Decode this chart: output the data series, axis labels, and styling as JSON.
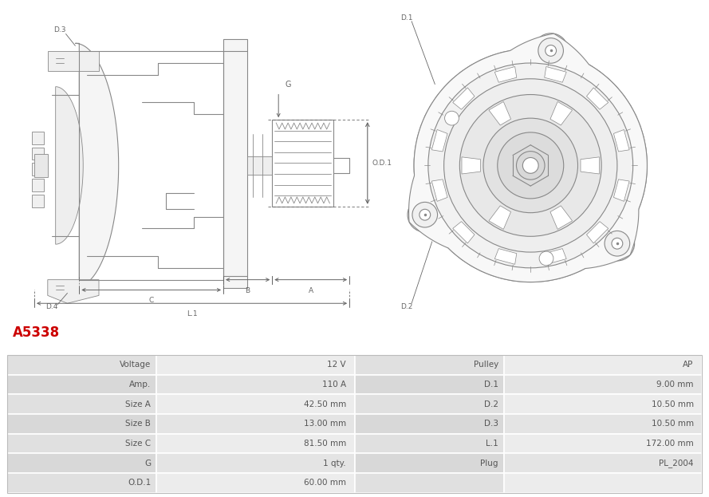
{
  "title": "A5338",
  "title_color": "#cc0000",
  "bg_color": "#ffffff",
  "table": {
    "left_col": [
      [
        "Voltage",
        "12 V"
      ],
      [
        "Amp.",
        "110 A"
      ],
      [
        "Size A",
        "42.50 mm"
      ],
      [
        "Size B",
        "13.00 mm"
      ],
      [
        "Size C",
        "81.50 mm"
      ],
      [
        "G",
        "1 qty."
      ],
      [
        "O.D.1",
        "60.00 mm"
      ]
    ],
    "right_col": [
      [
        "Pulley",
        "AP"
      ],
      [
        "D.1",
        "9.00 mm"
      ],
      [
        "D.2",
        "10.50 mm"
      ],
      [
        "D.3",
        "10.50 mm"
      ],
      [
        "L.1",
        "172.00 mm"
      ],
      [
        "Plug",
        "PL_2004"
      ],
      [
        "",
        ""
      ]
    ]
  },
  "lc": "#aaaaaa",
  "lc_dark": "#888888",
  "ac": "#666666",
  "text_color": "#555555",
  "title_color_str": "#cc0000"
}
